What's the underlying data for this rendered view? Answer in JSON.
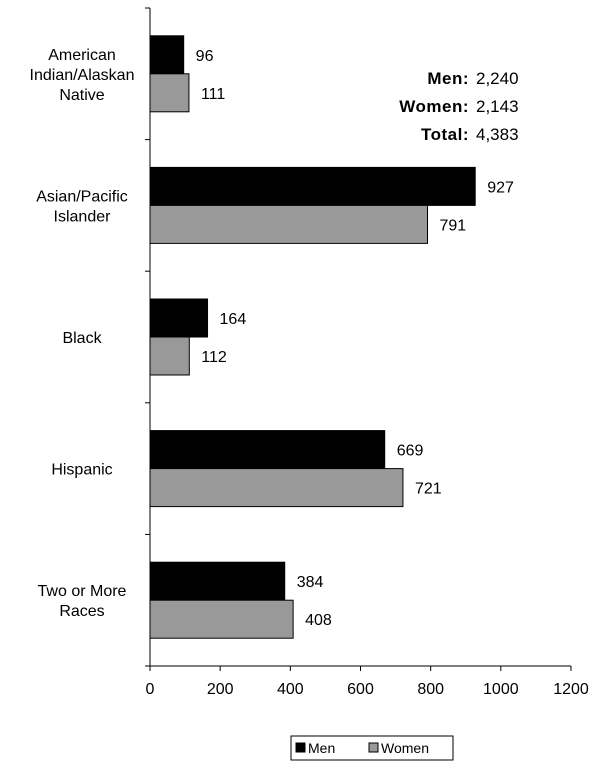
{
  "chart_data": {
    "type": "bar",
    "orientation": "horizontal",
    "categories": [
      [
        "American",
        "Indian/Alaskan",
        "Native"
      ],
      [
        "Asian/Pacific",
        "Islander"
      ],
      [
        "Black"
      ],
      [
        "Hispanic"
      ],
      [
        "Two or More",
        "Races"
      ]
    ],
    "series": [
      {
        "name": "Men",
        "values": [
          96,
          927,
          164,
          669,
          384
        ],
        "color": "#000000"
      },
      {
        "name": "Women",
        "values": [
          111,
          791,
          112,
          721,
          408
        ],
        "color": "#999999"
      }
    ],
    "value_labels": {
      "Men": [
        "96",
        "927",
        "164",
        "669",
        "384"
      ],
      "Women": [
        "111",
        "791",
        "112",
        "721",
        "408"
      ]
    },
    "xlim": [
      0,
      1200
    ],
    "xticks": [
      0,
      200,
      400,
      600,
      800,
      1000,
      1200
    ],
    "legend_position": "bottom-center",
    "grid": false,
    "summary": [
      {
        "label": "Men:",
        "value": "2,240"
      },
      {
        "label": "Women:",
        "value": "2,143"
      },
      {
        "label": "Total:",
        "value": "4,383"
      }
    ]
  }
}
